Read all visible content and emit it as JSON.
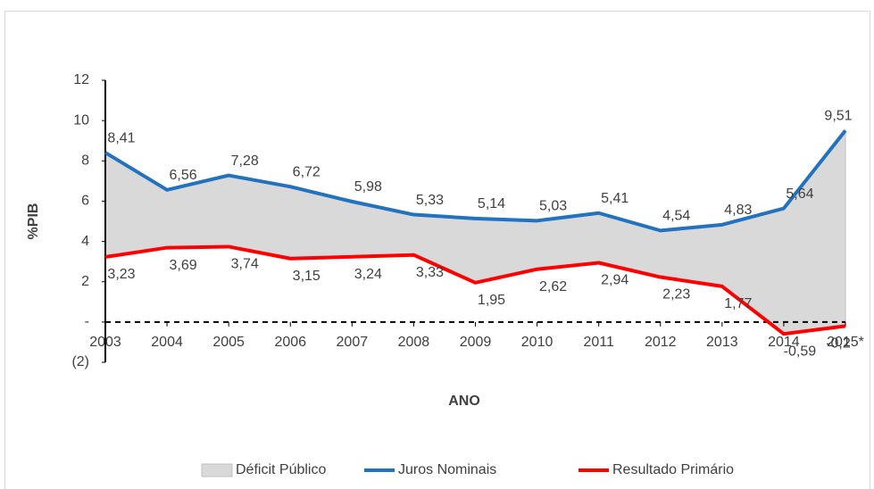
{
  "chart_data": {
    "type": "line",
    "xlabel": "ANO",
    "ylabel": "%PIB",
    "categories": [
      "2003",
      "2004",
      "2005",
      "2006",
      "2007",
      "2008",
      "2009",
      "2010",
      "2011",
      "2012",
      "2013",
      "2014",
      "2015*"
    ],
    "series": [
      {
        "name": "Déficit Público",
        "color": "#d9d9d9",
        "kind": "area",
        "stacked_on": 2,
        "values": [
          5.18,
          2.87,
          3.54,
          3.57,
          2.74,
          2.0,
          3.19,
          2.41,
          2.47,
          2.31,
          3.06,
          6.23,
          9.71
        ]
      },
      {
        "name": "Juros Nominais",
        "color": "#2272c0",
        "kind": "line",
        "values": [
          8.41,
          6.56,
          7.28,
          6.72,
          5.98,
          5.33,
          5.14,
          5.03,
          5.41,
          4.54,
          4.83,
          5.64,
          9.51
        ],
        "value_labels": [
          "8,41",
          "6,56",
          "7,28",
          "6,72",
          "5,98",
          "5,33",
          "5,14",
          "5,03",
          "5,41",
          "4,54",
          "4,83",
          "5,64",
          "9,51"
        ]
      },
      {
        "name": "Resultado Primário",
        "color": "#ff0000",
        "kind": "line",
        "values": [
          3.23,
          3.69,
          3.74,
          3.15,
          3.24,
          3.33,
          1.95,
          2.62,
          2.94,
          2.23,
          1.77,
          -0.59,
          -0.2
        ],
        "value_labels": [
          "3,23",
          "3,69",
          "3,74",
          "3,15",
          "3,24",
          "3,33",
          "1,95",
          "2,62",
          "2,94",
          "2,23",
          "1,77",
          "-0,59",
          "-0,2"
        ]
      }
    ],
    "ylim": [
      -2,
      12
    ],
    "yticks": [
      {
        "value": -2,
        "label": "(2)"
      },
      {
        "value": 0,
        "label": "-"
      },
      2,
      4,
      6,
      8,
      10,
      12
    ],
    "legend": "bottom"
  }
}
